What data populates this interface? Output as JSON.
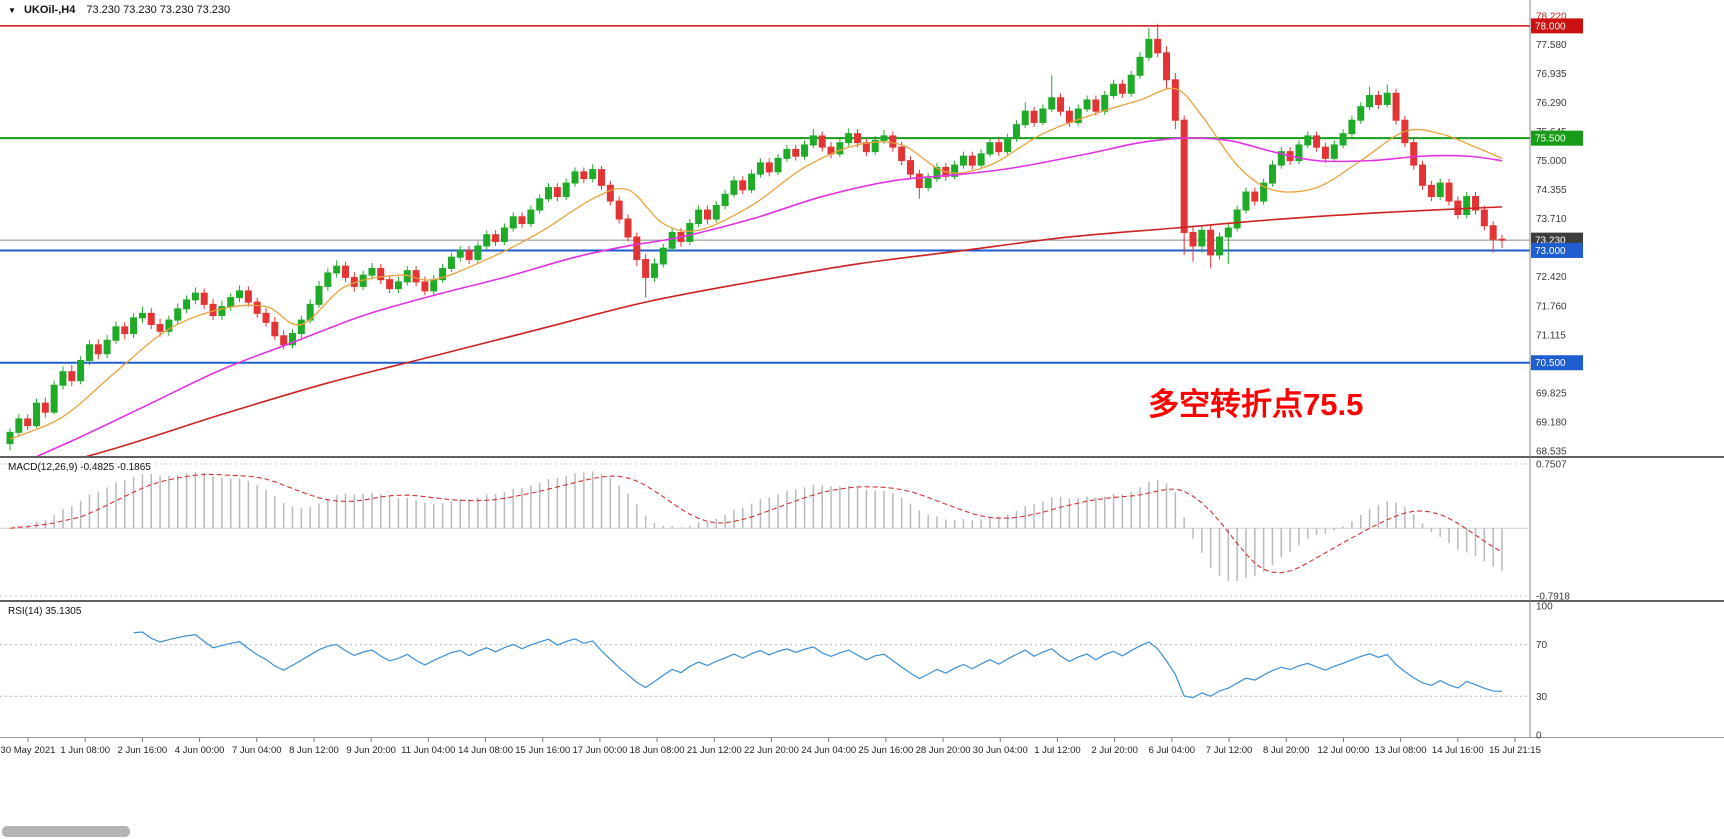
{
  "header": {
    "symbol_period": "UKOil-,H4",
    "ohlc_values": "73.230 73.230 73.230 73.230"
  },
  "annotation": {
    "text": "多空转折点75.5"
  },
  "colors": {
    "up": "#1fab28",
    "down": "#e23434",
    "ma_fast": "#e8a33d",
    "ma_mid": "#e332e3",
    "ma_slow": "#cc2222",
    "macd_hist": "#b9b9b9",
    "macd_signal": "#d23333",
    "rsi_line": "#3b8fd6",
    "annotation_red": "#ff0000"
  },
  "macd_panel": {
    "label": "MACD(12,26,9) -0.4825 -0.1865",
    "scale_max_label": "0.7507",
    "scale_min_label": "-0.7918"
  },
  "rsi_panel": {
    "label": "RSI(14) 35.1305",
    "scale_labels": [
      "100",
      "70",
      "30",
      "0"
    ]
  },
  "time_axis": {
    "labels": [
      "30 May 2021",
      "1 Jun 08:00",
      "2 Jun 16:00",
      "4 Jun 00:00",
      "7 Jun 04:00",
      "8 Jun 12:00",
      "9 Jun 20:00",
      "11 Jun 04:00",
      "14 Jun 08:00",
      "15 Jun 16:00",
      "17 Jun 00:00",
      "18 Jun 08:00",
      "21 Jun 12:00",
      "22 Jun 20:00",
      "24 Jun 04:00",
      "25 Jun 16:00",
      "28 Jun 20:00",
      "30 Jun 04:00",
      "1 Jul 12:00",
      "2 Jul 20:00",
      "6 Jul 04:00",
      "7 Jul 12:00",
      "8 Jul 20:00",
      "12 Jul 00:00",
      "13 Jul 08:00",
      "14 Jul 16:00",
      "15 Jul 21:15"
    ]
  },
  "chart_data": {
    "type": "candlestick",
    "symbol": "UKOil-",
    "timeframe": "H4",
    "title": "UKOil-,H4 73.230 73.230 73.230 73.230",
    "current_price": 73.23,
    "price_scale": {
      "max": 78.22,
      "min": 68.535,
      "step": 0.645,
      "top_label_color": "#cc2222",
      "tick_labels": [
        "78.220",
        "77.580",
        "76.935",
        "76.290",
        "75.645",
        "75.000",
        "74.355",
        "73.710",
        "72.420",
        "71.760",
        "71.115",
        "69.825",
        "69.180",
        "68.535"
      ]
    },
    "hlines": [
      {
        "price": 78.0,
        "color": "#cc1111",
        "width": 1.4
      },
      {
        "price": 75.5,
        "color": "#169c16",
        "width": 2
      },
      {
        "price": 73.23,
        "color": "#8a8a8a",
        "width": 1
      },
      {
        "price": 73.0,
        "color": "#1e5ed0",
        "width": 2
      },
      {
        "price": 70.5,
        "color": "#1e5ed0",
        "width": 2
      }
    ],
    "price_badges": [
      {
        "label": "78.000",
        "price": 78.0,
        "bg": "#cc1111"
      },
      {
        "label": "75.500",
        "price": 75.5,
        "bg": "#169c16"
      },
      {
        "label": "73.230",
        "price": 73.23,
        "bg": "#3d3d3d"
      },
      {
        "label": "73.000",
        "price": 73.0,
        "bg": "#1e5ed0"
      },
      {
        "label": "70.500",
        "price": 70.5,
        "bg": "#1e5ed0"
      }
    ],
    "macd": {
      "params": [
        12,
        26,
        9
      ],
      "display_values": [
        -0.4825,
        -0.1865
      ],
      "scale_max": 0.7507,
      "scale_min": -0.7918
    },
    "rsi": {
      "period": 14,
      "value": 35.1305,
      "levels": [
        70,
        30
      ],
      "range": [
        0,
        100
      ]
    },
    "ma_fast_points": [
      [
        0,
        68.8
      ],
      [
        6,
        69.3
      ],
      [
        12,
        70.3
      ],
      [
        18,
        71.25
      ],
      [
        24,
        71.7
      ],
      [
        29,
        71.75
      ],
      [
        33,
        71.35
      ],
      [
        38,
        72.2
      ],
      [
        44,
        72.45
      ],
      [
        48,
        72.35
      ],
      [
        54,
        72.8
      ],
      [
        60,
        73.4
      ],
      [
        66,
        74.15
      ],
      [
        70,
        74.35
      ],
      [
        74,
        73.6
      ],
      [
        78,
        73.45
      ],
      [
        84,
        74.0
      ],
      [
        90,
        74.85
      ],
      [
        96,
        75.35
      ],
      [
        101,
        75.35
      ],
      [
        106,
        74.75
      ],
      [
        111,
        74.9
      ],
      [
        117,
        75.6
      ],
      [
        123,
        76.05
      ],
      [
        128,
        76.35
      ],
      [
        132,
        76.6
      ],
      [
        135,
        76.0
      ],
      [
        139,
        74.9
      ],
      [
        143,
        74.35
      ],
      [
        148,
        74.4
      ],
      [
        153,
        75.0
      ],
      [
        158,
        75.65
      ],
      [
        162,
        75.6
      ],
      [
        166,
        75.3
      ],
      [
        169,
        75.05
      ]
    ],
    "ma_mid_points": [
      [
        0,
        68.15
      ],
      [
        8,
        68.85
      ],
      [
        16,
        69.6
      ],
      [
        24,
        70.35
      ],
      [
        32,
        70.95
      ],
      [
        40,
        71.55
      ],
      [
        48,
        72.0
      ],
      [
        56,
        72.4
      ],
      [
        64,
        72.85
      ],
      [
        70,
        73.1
      ],
      [
        76,
        73.3
      ],
      [
        84,
        73.7
      ],
      [
        92,
        74.2
      ],
      [
        100,
        74.55
      ],
      [
        108,
        74.7
      ],
      [
        114,
        74.85
      ],
      [
        122,
        75.15
      ],
      [
        128,
        75.4
      ],
      [
        133,
        75.5
      ],
      [
        138,
        75.45
      ],
      [
        143,
        75.2
      ],
      [
        148,
        75.0
      ],
      [
        154,
        75.0
      ],
      [
        160,
        75.1
      ],
      [
        165,
        75.1
      ],
      [
        169,
        75.0
      ]
    ],
    "ma_slow_points": [
      [
        0,
        67.95
      ],
      [
        12,
        68.6
      ],
      [
        24,
        69.35
      ],
      [
        36,
        70.05
      ],
      [
        48,
        70.65
      ],
      [
        60,
        71.25
      ],
      [
        72,
        71.85
      ],
      [
        84,
        72.3
      ],
      [
        96,
        72.7
      ],
      [
        108,
        73.0
      ],
      [
        120,
        73.3
      ],
      [
        132,
        73.5
      ],
      [
        144,
        73.7
      ],
      [
        156,
        73.85
      ],
      [
        169,
        73.97
      ]
    ],
    "candles_ohlc": [
      [
        68.7,
        69.05,
        68.55,
        68.95
      ],
      [
        68.95,
        69.35,
        68.85,
        69.25
      ],
      [
        69.25,
        69.35,
        69.0,
        69.1
      ],
      [
        69.1,
        69.7,
        69.05,
        69.6
      ],
      [
        69.6,
        69.72,
        69.28,
        69.4
      ],
      [
        69.4,
        70.1,
        69.35,
        70.0
      ],
      [
        70.0,
        70.42,
        69.9,
        70.3
      ],
      [
        70.3,
        70.45,
        69.98,
        70.1
      ],
      [
        70.1,
        70.65,
        70.02,
        70.55
      ],
      [
        70.55,
        71.0,
        70.45,
        70.9
      ],
      [
        70.9,
        71.02,
        70.58,
        70.7
      ],
      [
        70.7,
        71.12,
        70.6,
        71.0
      ],
      [
        71.0,
        71.42,
        70.92,
        71.3
      ],
      [
        71.3,
        71.4,
        71.02,
        71.15
      ],
      [
        71.15,
        71.6,
        71.05,
        71.5
      ],
      [
        71.5,
        71.75,
        71.38,
        71.6
      ],
      [
        71.6,
        71.72,
        71.25,
        71.35
      ],
      [
        71.35,
        71.48,
        71.08,
        71.2
      ],
      [
        71.2,
        71.55,
        71.1,
        71.45
      ],
      [
        71.45,
        71.82,
        71.35,
        71.7
      ],
      [
        71.7,
        72.0,
        71.6,
        71.9
      ],
      [
        71.9,
        72.18,
        71.8,
        72.05
      ],
      [
        72.05,
        72.15,
        71.7,
        71.8
      ],
      [
        71.8,
        71.92,
        71.45,
        71.55
      ],
      [
        71.55,
        71.88,
        71.45,
        71.75
      ],
      [
        71.75,
        72.05,
        71.65,
        71.95
      ],
      [
        71.95,
        72.22,
        71.85,
        72.1
      ],
      [
        72.1,
        72.2,
        71.75,
        71.85
      ],
      [
        71.85,
        71.95,
        71.5,
        71.6
      ],
      [
        71.6,
        71.72,
        71.3,
        71.4
      ],
      [
        71.4,
        71.52,
        71.0,
        71.1
      ],
      [
        71.1,
        71.22,
        70.8,
        70.9
      ],
      [
        70.9,
        71.25,
        70.82,
        71.15
      ],
      [
        71.15,
        71.55,
        71.05,
        71.45
      ],
      [
        71.45,
        71.92,
        71.38,
        71.8
      ],
      [
        71.8,
        72.32,
        71.72,
        72.2
      ],
      [
        72.2,
        72.6,
        72.1,
        72.5
      ],
      [
        72.5,
        72.78,
        72.4,
        72.65
      ],
      [
        72.65,
        72.75,
        72.3,
        72.4
      ],
      [
        72.4,
        72.52,
        72.08,
        72.2
      ],
      [
        72.2,
        72.55,
        72.12,
        72.45
      ],
      [
        72.45,
        72.72,
        72.35,
        72.6
      ],
      [
        72.6,
        72.7,
        72.25,
        72.35
      ],
      [
        72.35,
        72.45,
        72.05,
        72.15
      ],
      [
        72.15,
        72.42,
        72.05,
        72.3
      ],
      [
        72.3,
        72.65,
        72.22,
        72.55
      ],
      [
        72.55,
        72.65,
        72.2,
        72.3
      ],
      [
        72.3,
        72.42,
        72.0,
        72.1
      ],
      [
        72.1,
        72.45,
        72.02,
        72.35
      ],
      [
        72.35,
        72.7,
        72.28,
        72.6
      ],
      [
        72.6,
        72.95,
        72.52,
        72.85
      ],
      [
        72.85,
        73.1,
        72.75,
        73.0
      ],
      [
        73.0,
        73.1,
        72.7,
        72.8
      ],
      [
        72.8,
        73.2,
        72.72,
        73.1
      ],
      [
        73.1,
        73.45,
        73.02,
        73.35
      ],
      [
        73.35,
        73.45,
        73.1,
        73.2
      ],
      [
        73.2,
        73.6,
        73.12,
        73.5
      ],
      [
        73.5,
        73.85,
        73.42,
        73.75
      ],
      [
        73.75,
        73.85,
        73.5,
        73.6
      ],
      [
        73.6,
        74.0,
        73.52,
        73.9
      ],
      [
        73.9,
        74.25,
        73.82,
        74.15
      ],
      [
        74.15,
        74.5,
        74.08,
        74.4
      ],
      [
        74.4,
        74.5,
        74.1,
        74.2
      ],
      [
        74.2,
        74.6,
        74.12,
        74.5
      ],
      [
        74.5,
        74.85,
        74.42,
        74.75
      ],
      [
        74.75,
        74.85,
        74.5,
        74.6
      ],
      [
        74.6,
        74.92,
        74.52,
        74.8
      ],
      [
        74.8,
        74.88,
        74.35,
        74.45
      ],
      [
        74.45,
        74.55,
        74.0,
        74.1
      ],
      [
        74.1,
        74.2,
        73.6,
        73.7
      ],
      [
        73.7,
        73.8,
        73.2,
        73.3
      ],
      [
        73.3,
        73.4,
        72.65,
        72.8
      ],
      [
        72.8,
        72.92,
        71.95,
        72.4
      ],
      [
        72.4,
        72.82,
        72.3,
        72.7
      ],
      [
        72.7,
        73.15,
        72.62,
        73.05
      ],
      [
        73.05,
        73.5,
        72.98,
        73.4
      ],
      [
        73.4,
        73.5,
        73.08,
        73.2
      ],
      [
        73.2,
        73.7,
        73.12,
        73.6
      ],
      [
        73.6,
        74.0,
        73.52,
        73.9
      ],
      [
        73.9,
        74.0,
        73.58,
        73.7
      ],
      [
        73.7,
        74.1,
        73.62,
        74.0
      ],
      [
        74.0,
        74.35,
        73.92,
        74.25
      ],
      [
        74.25,
        74.65,
        74.18,
        74.55
      ],
      [
        74.55,
        74.65,
        74.25,
        74.35
      ],
      [
        74.35,
        74.8,
        74.28,
        74.7
      ],
      [
        74.7,
        75.05,
        74.62,
        74.95
      ],
      [
        74.95,
        75.05,
        74.65,
        74.75
      ],
      [
        74.75,
        75.15,
        74.68,
        75.05
      ],
      [
        75.05,
        75.35,
        74.98,
        75.25
      ],
      [
        75.25,
        75.35,
        75.0,
        75.1
      ],
      [
        75.1,
        75.45,
        75.02,
        75.35
      ],
      [
        75.35,
        75.7,
        75.28,
        75.55
      ],
      [
        75.55,
        75.65,
        75.2,
        75.3
      ],
      [
        75.3,
        75.42,
        75.05,
        75.15
      ],
      [
        75.15,
        75.5,
        75.08,
        75.4
      ],
      [
        75.4,
        75.72,
        75.32,
        75.6
      ],
      [
        75.6,
        75.7,
        75.3,
        75.4
      ],
      [
        75.4,
        75.5,
        75.1,
        75.2
      ],
      [
        75.2,
        75.55,
        75.12,
        75.45
      ],
      [
        75.45,
        75.68,
        75.38,
        75.55
      ],
      [
        75.55,
        75.65,
        75.2,
        75.3
      ],
      [
        75.3,
        75.42,
        74.9,
        75.0
      ],
      [
        75.0,
        75.1,
        74.6,
        74.7
      ],
      [
        74.7,
        74.8,
        74.15,
        74.4
      ],
      [
        74.4,
        74.72,
        74.32,
        74.6
      ],
      [
        74.6,
        74.95,
        74.52,
        74.85
      ],
      [
        74.85,
        74.95,
        74.55,
        74.65
      ],
      [
        74.65,
        75.0,
        74.58,
        74.9
      ],
      [
        74.9,
        75.2,
        74.82,
        75.1
      ],
      [
        75.1,
        75.2,
        74.8,
        74.9
      ],
      [
        74.9,
        75.25,
        74.82,
        75.15
      ],
      [
        75.15,
        75.5,
        75.08,
        75.4
      ],
      [
        75.4,
        75.5,
        75.1,
        75.2
      ],
      [
        75.2,
        75.6,
        75.12,
        75.5
      ],
      [
        75.5,
        75.9,
        75.42,
        75.8
      ],
      [
        75.8,
        76.3,
        75.72,
        76.1
      ],
      [
        76.1,
        76.2,
        75.75,
        75.85
      ],
      [
        75.85,
        76.25,
        75.78,
        76.15
      ],
      [
        76.15,
        76.9,
        76.08,
        76.4
      ],
      [
        76.4,
        76.5,
        76.0,
        76.1
      ],
      [
        76.1,
        76.2,
        75.75,
        75.85
      ],
      [
        75.85,
        76.25,
        75.78,
        76.15
      ],
      [
        76.15,
        76.45,
        76.08,
        76.35
      ],
      [
        76.35,
        76.45,
        76.0,
        76.1
      ],
      [
        76.1,
        76.55,
        76.02,
        76.45
      ],
      [
        76.45,
        76.8,
        76.38,
        76.7
      ],
      [
        76.7,
        76.8,
        76.4,
        76.5
      ],
      [
        76.5,
        77.0,
        76.42,
        76.9
      ],
      [
        76.9,
        77.42,
        76.82,
        77.3
      ],
      [
        77.3,
        77.95,
        77.22,
        77.7
      ],
      [
        77.7,
        78.05,
        77.3,
        77.4
      ],
      [
        77.4,
        77.55,
        76.6,
        76.8
      ],
      [
        76.8,
        76.95,
        75.7,
        75.9
      ],
      [
        75.9,
        76.0,
        72.9,
        73.4
      ],
      [
        73.4,
        73.55,
        72.75,
        73.1
      ],
      [
        73.1,
        73.55,
        72.95,
        73.45
      ],
      [
        73.45,
        73.55,
        72.6,
        72.9
      ],
      [
        72.9,
        73.4,
        72.8,
        73.3
      ],
      [
        73.3,
        73.62,
        72.7,
        73.5
      ],
      [
        73.5,
        74.0,
        73.42,
        73.9
      ],
      [
        73.9,
        74.4,
        73.82,
        74.3
      ],
      [
        74.3,
        74.4,
        74.0,
        74.1
      ],
      [
        74.1,
        74.6,
        74.02,
        74.5
      ],
      [
        74.5,
        75.0,
        74.42,
        74.9
      ],
      [
        74.9,
        75.3,
        74.82,
        75.2
      ],
      [
        75.2,
        75.3,
        74.9,
        75.0
      ],
      [
        75.0,
        75.45,
        74.92,
        75.35
      ],
      [
        75.35,
        75.65,
        75.28,
        75.55
      ],
      [
        75.55,
        75.65,
        75.2,
        75.3
      ],
      [
        75.3,
        75.4,
        74.95,
        75.05
      ],
      [
        75.05,
        75.45,
        74.98,
        75.35
      ],
      [
        75.35,
        75.7,
        75.28,
        75.6
      ],
      [
        75.6,
        76.0,
        75.52,
        75.9
      ],
      [
        75.9,
        76.3,
        75.82,
        76.2
      ],
      [
        76.2,
        76.65,
        76.12,
        76.45
      ],
      [
        76.45,
        76.55,
        76.15,
        76.25
      ],
      [
        76.25,
        76.7,
        76.18,
        76.5
      ],
      [
        76.5,
        76.6,
        75.8,
        75.9
      ],
      [
        75.9,
        76.0,
        75.3,
        75.4
      ],
      [
        75.4,
        75.5,
        74.8,
        74.9
      ],
      [
        74.9,
        75.0,
        74.35,
        74.45
      ],
      [
        74.45,
        74.55,
        74.1,
        74.2
      ],
      [
        74.2,
        74.6,
        74.12,
        74.5
      ],
      [
        74.5,
        74.6,
        74.0,
        74.1
      ],
      [
        74.1,
        74.2,
        73.7,
        73.8
      ],
      [
        73.8,
        74.3,
        73.72,
        74.2
      ],
      [
        74.2,
        74.3,
        73.8,
        73.9
      ],
      [
        73.9,
        74.0,
        73.45,
        73.55
      ],
      [
        73.55,
        73.65,
        72.95,
        73.25
      ],
      [
        73.25,
        73.35,
        73.05,
        73.23
      ]
    ]
  }
}
